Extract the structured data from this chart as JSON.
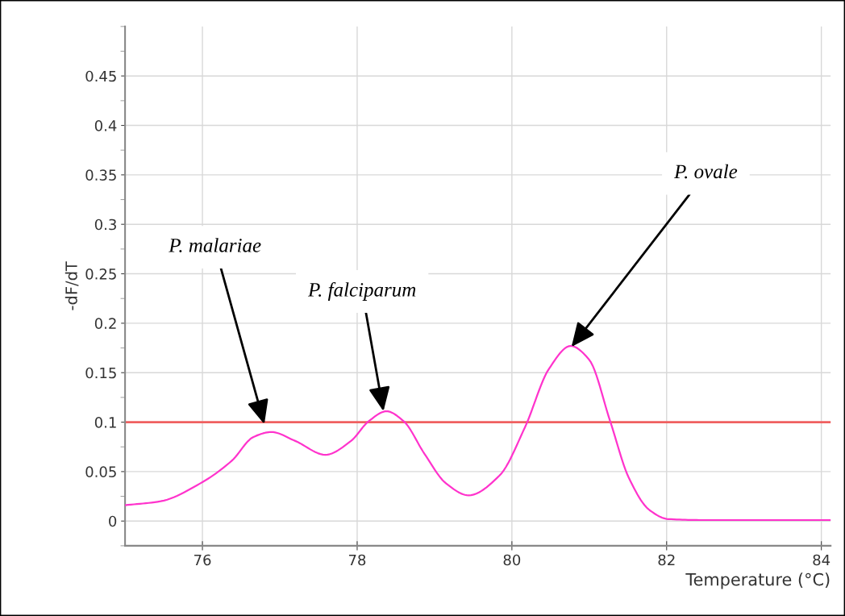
{
  "chart_data": {
    "type": "line",
    "xlabel": "Temperature (°C)",
    "ylabel": "-dF/dT",
    "x": [
      75.0,
      75.46,
      75.97,
      76.38,
      76.66,
      76.89,
      77.2,
      77.59,
      77.92,
      78.15,
      78.38,
      78.6,
      78.87,
      79.15,
      79.44,
      79.84,
      80.17,
      80.48,
      80.76,
      81.0,
      81.27,
      81.51,
      81.78,
      82.02,
      82.46,
      83.3,
      84.12
    ],
    "series": [
      {
        "color": "#ff33cc",
        "values": [
          0.016,
          0.02,
          0.038,
          0.061,
          0.085,
          0.09,
          0.081,
          0.067,
          0.081,
          0.101,
          0.111,
          0.101,
          0.068,
          0.038,
          0.026,
          0.046,
          0.095,
          0.154,
          0.177,
          0.163,
          0.101,
          0.044,
          0.011,
          0.002,
          0.001,
          0.001,
          0.001
        ]
      }
    ],
    "ref_lines": [
      {
        "axis": "y",
        "value": 0.1,
        "color": "#f06060"
      }
    ],
    "annotations": [
      {
        "text": "P. malariae",
        "x": 76.8,
        "y": 0.098
      },
      {
        "text": "P. falciparum",
        "x": 78.34,
        "y": 0.111
      },
      {
        "text": "P. ovale",
        "x": 80.77,
        "y": 0.176
      }
    ],
    "xlim": [
      75,
      84.12
    ],
    "ylim": [
      -0.025,
      0.5
    ],
    "xticks": [
      76,
      78,
      80,
      82,
      84
    ],
    "yticks": [
      0,
      0.05,
      0.1,
      0.15,
      0.2,
      0.25,
      0.3,
      0.35,
      0.4,
      0.45
    ],
    "grid": true,
    "marker": "none",
    "line_style": "solid"
  }
}
